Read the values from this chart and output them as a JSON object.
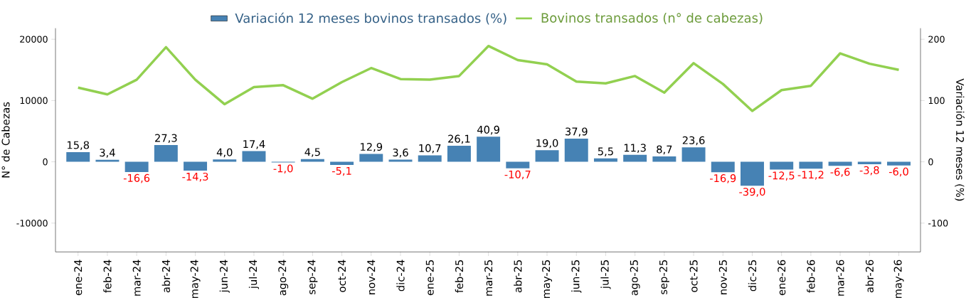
{
  "chart_data": {
    "type": "bar",
    "categories": [
      "ene-24",
      "feb-24",
      "mar-24",
      "abr-24",
      "may-24",
      "jun-24",
      "jul-24",
      "ago-24",
      "sep-24",
      "oct-24",
      "nov-24",
      "dic-24",
      "ene-25",
      "feb-25",
      "mar-25",
      "abr-25",
      "may-25",
      "jun-25",
      "jul-25",
      "ago-25",
      "sep-25",
      "oct-25",
      "nov-25",
      "dic-25",
      "ene-26",
      "feb-26",
      "mar-26",
      "abr-26",
      "may-26"
    ],
    "series": [
      {
        "name": "Variación 12 meses bovinos transados (%)",
        "axis": "y2",
        "color": "#4682b4",
        "values": [
          15.8,
          3.4,
          -16.6,
          27.3,
          -14.3,
          4.0,
          17.4,
          -1.0,
          4.5,
          -5.1,
          12.9,
          3.6,
          10.7,
          26.1,
          40.9,
          -10.7,
          19.0,
          37.9,
          5.5,
          11.3,
          8.7,
          23.6,
          -16.9,
          -39.0,
          -12.5,
          -11.2,
          -6.6,
          -3.8,
          -6.0
        ],
        "value_labels": [
          "15,8",
          "3,4",
          "-16,6",
          "27,3",
          "-14,3",
          "4,0",
          "17,4",
          "-1,0",
          "4,5",
          "-5,1",
          "12,9",
          "3,6",
          "10,7",
          "26,1",
          "40,9",
          "-10,7",
          "19,0",
          "37,9",
          "5,5",
          "11,3",
          "8,7",
          "23,6",
          "-16,9",
          "-39,0",
          "-12,5",
          "-11,2",
          "-6,6",
          "-3,8",
          "-6,0"
        ]
      },
      {
        "name": "Bovinos transados (n° de cabezas)",
        "type": "line",
        "color": "#92d050",
        "values": [
          12100,
          11000,
          13400,
          18700,
          13400,
          9400,
          12200,
          12500,
          10300,
          13000,
          15300,
          13500,
          13400,
          14000,
          18900,
          16600,
          15900,
          13100,
          12800,
          14000,
          11300,
          16100,
          12700,
          8300,
          11700,
          12400,
          17700,
          16000,
          15000
        ]
      }
    ],
    "ylabel": "N° de Cabezas",
    "y2label": "Variación 12 meses (%)",
    "ylim": [
      -14700,
      21800
    ],
    "yticks": [
      -10000,
      0,
      10000,
      20000
    ],
    "y2lim": [
      -147,
      218
    ],
    "y2ticks": [
      -100,
      0,
      100,
      200
    ],
    "legend": "top",
    "grid": false
  }
}
